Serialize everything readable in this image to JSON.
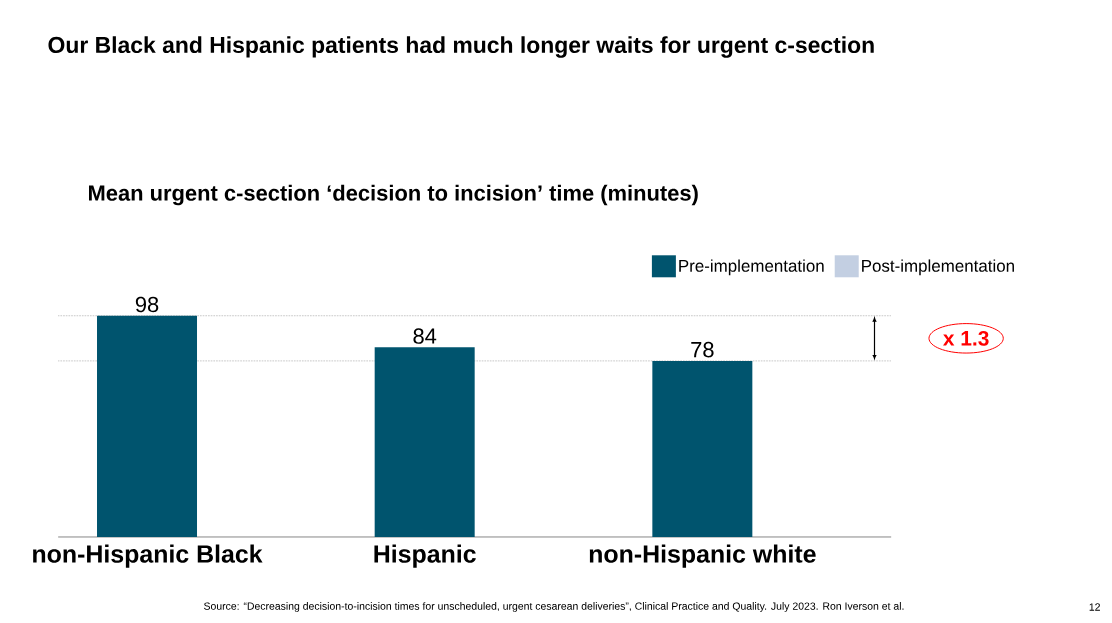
{
  "chart_data": {
    "type": "bar",
    "title": "Our Black and Hispanic patients had much longer waits for urgent c-section",
    "subtitle": "Mean urgent c-section ‘decision to incision’ time (minutes)",
    "categories": [
      "non-Hispanic Black",
      "Hispanic",
      "non-Hispanic white"
    ],
    "series": [
      {
        "name": "Pre-implementation",
        "color": "#00546e",
        "values": [
          98,
          84,
          78
        ]
      },
      {
        "name": "Post-implementation",
        "color": "#c3cfe2",
        "values": [
          null,
          null,
          null
        ]
      }
    ],
    "data_labels": true,
    "legend": "top right",
    "ref_lines": [
      {
        "axis": "y",
        "value": 98,
        "line_style": "dotted"
      },
      {
        "axis": "y",
        "value": 78,
        "line_style": "dotted"
      }
    ],
    "annotations": [
      "x 1.3",
      "Source: “Decreasing decision-to-incision times for unscheduled, urgent cesarean deliveries”, Clinical Practice and Quality. July 2023. Ron Iverson et al.",
      "12"
    ]
  }
}
